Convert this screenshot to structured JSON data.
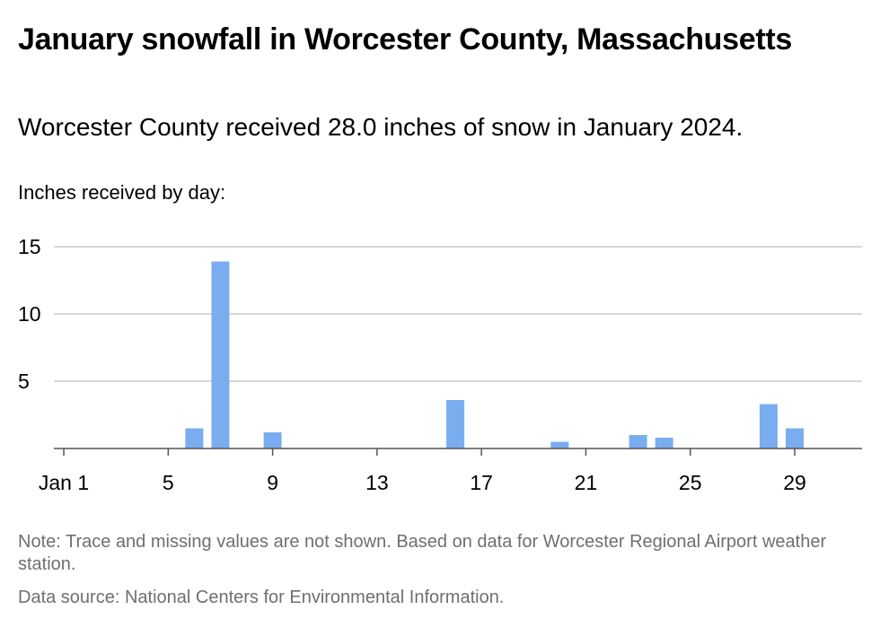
{
  "header": {
    "title": "January snowfall in Worcester County, Massachusetts",
    "subtitle": "Worcester County received 28.0 inches of snow in January 2024.",
    "axis_caption": "Inches received by day:"
  },
  "footer": {
    "note": "Note: Trace and missing values are not shown. Based on data for Worcester Regional Airport weather station.",
    "source": "Data source: National Centers for Environmental Information."
  },
  "chart_data": {
    "type": "bar",
    "title": "January snowfall in Worcester County, Massachusetts",
    "subtitle": "Worcester County received 28.0 inches of snow in January 2024.",
    "ylabel": "Inches received by day:",
    "xlabel": "",
    "x_domain": [
      1,
      31
    ],
    "ylim": [
      0,
      15
    ],
    "y_ticks": [
      5,
      10,
      15
    ],
    "x_ticks": [
      {
        "day": 1,
        "label": "Jan 1"
      },
      {
        "day": 5,
        "label": "5"
      },
      {
        "day": 9,
        "label": "9"
      },
      {
        "day": 13,
        "label": "13"
      },
      {
        "day": 17,
        "label": "17"
      },
      {
        "day": 21,
        "label": "21"
      },
      {
        "day": 25,
        "label": "25"
      },
      {
        "day": 29,
        "label": "29"
      }
    ],
    "grid": true,
    "bar_color": "#7aadf0",
    "days": [
      6,
      7,
      9,
      16,
      20,
      23,
      24,
      28,
      29
    ],
    "values": [
      1.5,
      13.9,
      1.2,
      3.6,
      0.5,
      1.0,
      0.8,
      3.3,
      1.5
    ]
  }
}
